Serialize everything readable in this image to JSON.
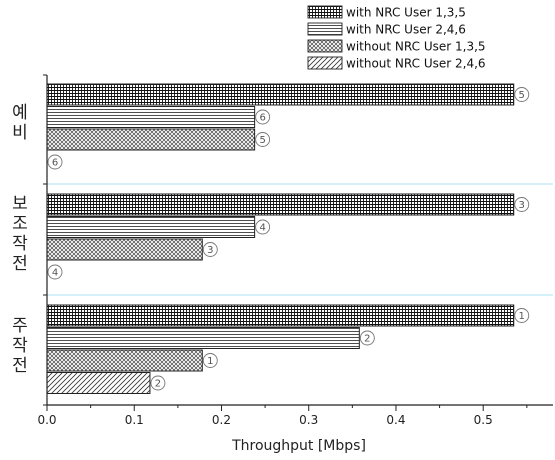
{
  "chart_data": {
    "type": "bar",
    "orientation": "horizontal",
    "title": "",
    "xlabel": "Throughput [Mbps]",
    "ylabel": "",
    "xlim": [
      0,
      0.58
    ],
    "x_ticks": [
      "0.0",
      "0.1",
      "0.2",
      "0.3",
      "0.4",
      "0.5"
    ],
    "grid": false,
    "legend_position": "top-right",
    "categories": [
      {
        "label": "예비",
        "chars": [
          "예",
          "비"
        ]
      },
      {
        "label": "보조작전",
        "chars": [
          "보",
          "조",
          "작",
          "전"
        ]
      },
      {
        "label": "주작전",
        "chars": [
          "주",
          "작",
          "전"
        ]
      }
    ],
    "series": [
      {
        "name": "with NRC User 1,3,5",
        "pattern": "grid",
        "values": [
          0.535,
          0.535,
          0.535
        ],
        "badges": [
          "5",
          "3",
          "1"
        ]
      },
      {
        "name": "with NRC User 2,4,6",
        "pattern": "hlines",
        "values": [
          0.238,
          0.238,
          0.358
        ],
        "badges": [
          "6",
          "4",
          "2"
        ]
      },
      {
        "name": "without NRC User 1,3,5",
        "pattern": "crosshatch",
        "values": [
          0.238,
          0.178,
          0.178
        ],
        "badges": [
          "5",
          "3",
          "1"
        ]
      },
      {
        "name": "without NRC User 2,4,6",
        "pattern": "diagonal",
        "values": [
          0.0,
          0.0,
          0.118
        ],
        "badges": [
          "6",
          "4",
          "2"
        ]
      }
    ],
    "separator_color": "#a8e0f0"
  }
}
